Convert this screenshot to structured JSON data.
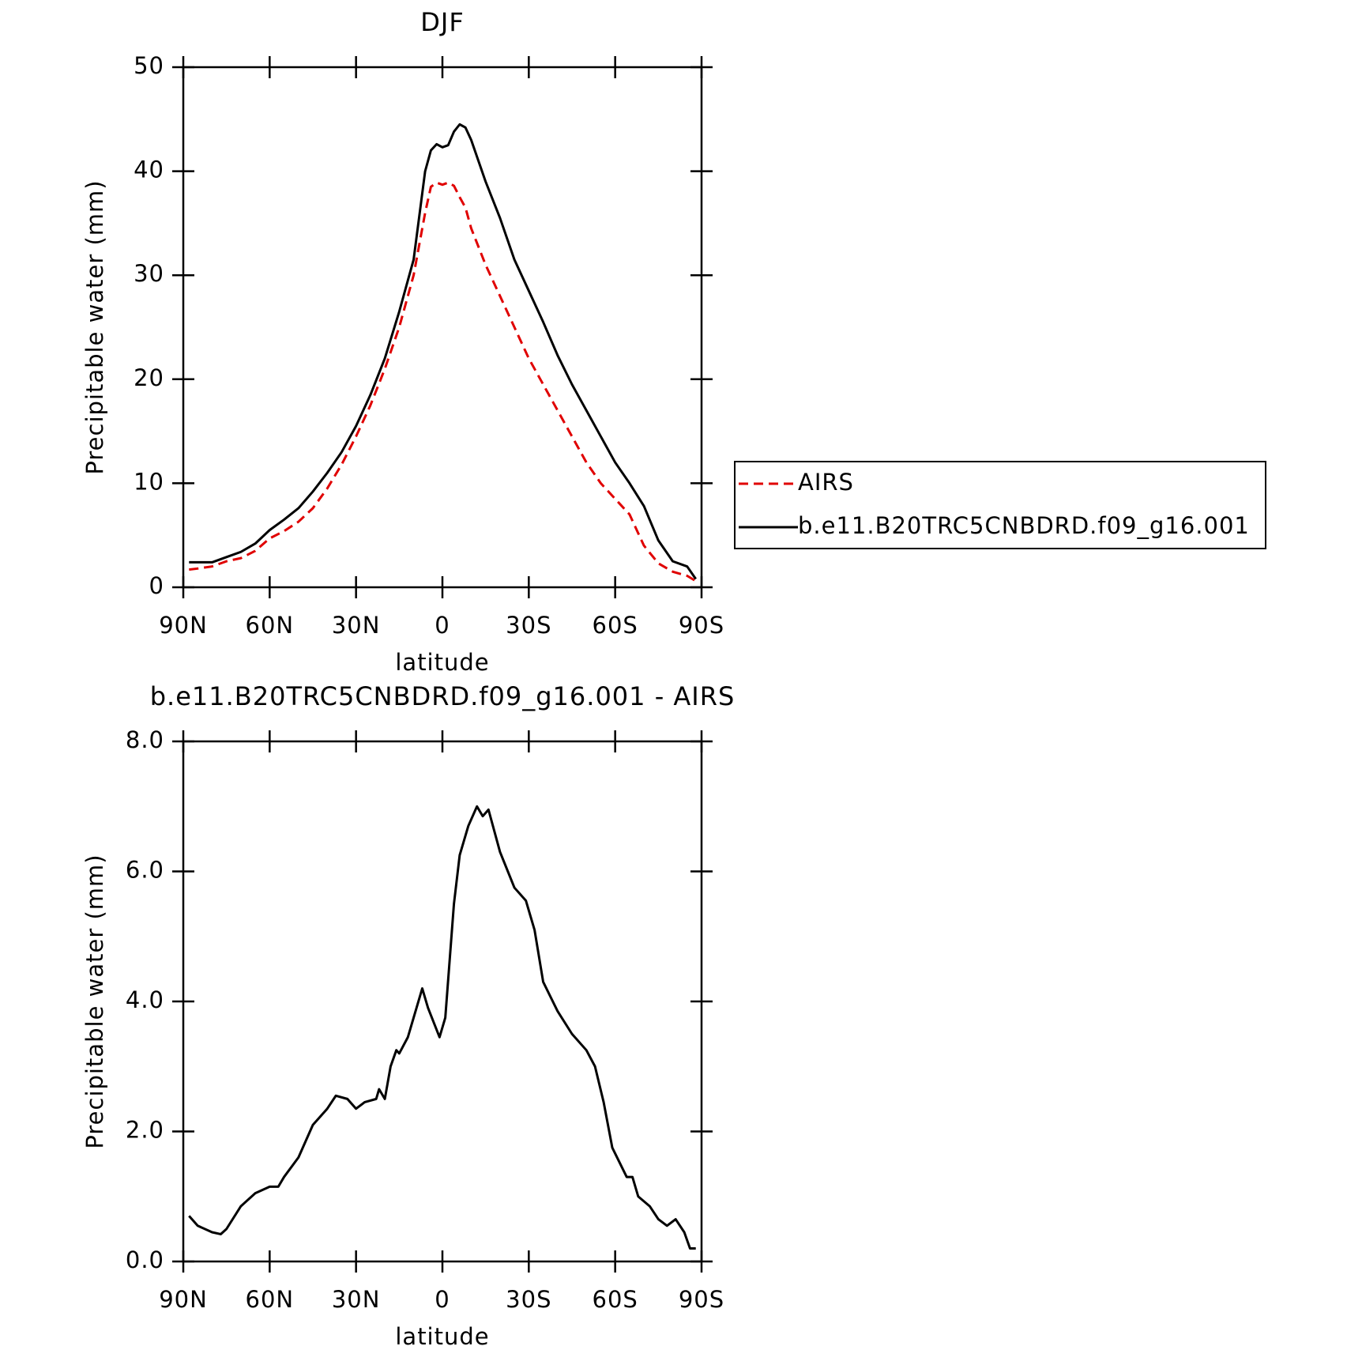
{
  "chart_data": [
    {
      "type": "line",
      "title": "DJF",
      "xlabel": "latitude",
      "ylabel": "Precipitable water (mm)",
      "x": [
        88,
        85,
        80,
        75,
        70,
        65,
        60,
        55,
        50,
        45,
        40,
        35,
        30,
        25,
        20,
        15,
        10,
        6,
        4,
        2,
        0,
        -2,
        -4,
        -6,
        -8,
        -10,
        -15,
        -20,
        -25,
        -30,
        -35,
        -40,
        -45,
        -50,
        -55,
        -60,
        -65,
        -70,
        -75,
        -80,
        -85,
        -88
      ],
      "series": [
        {
          "name": "AIRS",
          "color": "#e00000",
          "dash": true,
          "values": [
            1.7,
            1.8,
            2.0,
            2.5,
            2.8,
            3.5,
            4.7,
            5.4,
            6.3,
            7.6,
            9.5,
            11.8,
            14.5,
            17.5,
            21,
            25,
            30,
            36,
            38.5,
            38.9,
            38.7,
            38.9,
            38.6,
            37.5,
            36.5,
            34.5,
            31,
            28,
            25,
            22,
            19.5,
            17,
            14.5,
            12,
            10,
            8.5,
            7,
            4,
            2.3,
            1.5,
            1.1,
            0.6
          ]
        },
        {
          "name": "b.e11.B20TRC5CNBDRD.f09_g16.001",
          "color": "#000000",
          "dash": false,
          "values": [
            2.4,
            2.4,
            2.4,
            2.9,
            3.4,
            4.2,
            5.5,
            6.5,
            7.6,
            9.2,
            11.0,
            13.0,
            15.5,
            18.5,
            22,
            26.5,
            31.5,
            40,
            42,
            42.6,
            42.3,
            42.5,
            43.8,
            44.5,
            44.2,
            43,
            39,
            35.5,
            31.5,
            28.5,
            25.5,
            22.3,
            19.5,
            17,
            14.5,
            12,
            10,
            7.8,
            4.5,
            2.5,
            2,
            0.8
          ]
        }
      ],
      "xlim": [
        90,
        -90
      ],
      "xticks": [
        {
          "value": 90,
          "label": "90N"
        },
        {
          "value": 60,
          "label": "60N"
        },
        {
          "value": 30,
          "label": "30N"
        },
        0,
        {
          "value": -30,
          "label": "30S"
        },
        {
          "value": -60,
          "label": "60S"
        },
        {
          "value": -90,
          "label": "90S"
        }
      ],
      "ylim": [
        0,
        50
      ],
      "yticks": [
        0,
        10,
        20,
        30,
        40,
        50
      ],
      "legend": "right"
    },
    {
      "type": "line",
      "title": "b.e11.B20TRC5CNBDRD.f09_g16.001 - AIRS",
      "xlabel": "latitude",
      "ylabel": "Precipitable water (mm)",
      "x": [
        88,
        85,
        80,
        77,
        75,
        70,
        65,
        60,
        57,
        55,
        50,
        45,
        40,
        37,
        33,
        30,
        27,
        23,
        22,
        20,
        18,
        16,
        15,
        12,
        10,
        7,
        5,
        1,
        -1,
        -4,
        -6,
        -9,
        -12,
        -14,
        -16,
        -20,
        -25,
        -29,
        -32,
        -35,
        -40,
        -45,
        -50,
        -53,
        -56,
        -59,
        -64,
        -66,
        -68,
        -72,
        -75,
        -78,
        -81,
        -84,
        -86,
        -88
      ],
      "series": [
        {
          "color": "#000000",
          "dash": false,
          "values": [
            0.7,
            0.55,
            0.45,
            0.42,
            0.5,
            0.85,
            1.05,
            1.15,
            1.15,
            1.3,
            1.6,
            2.1,
            2.35,
            2.55,
            2.5,
            2.35,
            2.45,
            2.5,
            2.65,
            2.5,
            3.0,
            3.25,
            3.2,
            3.45,
            3.75,
            4.2,
            3.9,
            3.45,
            3.75,
            5.5,
            6.25,
            6.7,
            7.0,
            6.85,
            6.95,
            6.3,
            5.75,
            5.55,
            5.1,
            4.3,
            3.85,
            3.5,
            3.25,
            3.0,
            2.45,
            1.75,
            1.3,
            1.3,
            1.0,
            0.85,
            0.65,
            0.55,
            0.65,
            0.45,
            0.2,
            0.2
          ]
        }
      ],
      "xlim": [
        90,
        -90
      ],
      "xticks": [
        {
          "value": 90,
          "label": "90N"
        },
        {
          "value": 60,
          "label": "60N"
        },
        {
          "value": 30,
          "label": "30N"
        },
        0,
        {
          "value": -30,
          "label": "30S"
        },
        {
          "value": -60,
          "label": "60S"
        },
        {
          "value": -90,
          "label": "90S"
        }
      ],
      "ylim": [
        0,
        8
      ],
      "yticks": [
        {
          "value": 0,
          "label": "0.0"
        },
        {
          "value": 2,
          "label": "2.0"
        },
        {
          "value": 4,
          "label": "4.0"
        },
        {
          "value": 6,
          "label": "6.0"
        },
        {
          "value": 8,
          "label": "8.0"
        }
      ]
    }
  ]
}
